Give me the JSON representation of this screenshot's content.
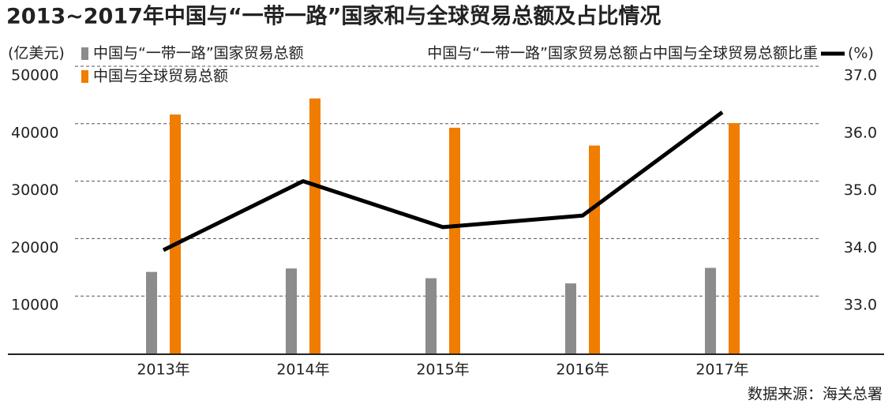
{
  "chart_data": {
    "type": "bar",
    "title": "2013~2017年中国与“一带一路”国家和与全球贸易总额及占比情况",
    "y_axis_label": "(亿美元)",
    "y2_axis_label": "(%)",
    "source": "数据来源：海关总署",
    "categories": [
      "2013年",
      "2014年",
      "2015年",
      "2016年",
      "2017年"
    ],
    "series": [
      {
        "name": "中国与“一带一路”国家贸易总额",
        "type": "bar",
        "color": "#8c8c8c",
        "values": [
          14200,
          14800,
          13100,
          12200,
          14900
        ]
      },
      {
        "name": "中国与全球贸易总额",
        "type": "bar",
        "color": "#f07c00",
        "values": [
          41600,
          44400,
          39300,
          36200,
          40100
        ]
      },
      {
        "name": "中国与“一带一路”国家贸易总额占中国与全球贸易总额比重",
        "type": "line",
        "axis": "y2",
        "color": "#000000",
        "values": [
          33.8,
          35.0,
          34.2,
          34.4,
          36.2
        ]
      }
    ],
    "ylim": [
      0,
      50000
    ],
    "yticks": [
      10000,
      20000,
      30000,
      40000,
      50000
    ],
    "y2lim": [
      32,
      37
    ],
    "y2ticks": [
      {
        "value": 33,
        "label": "33.0"
      },
      {
        "value": 34,
        "label": "34.0"
      },
      {
        "value": 35,
        "label": "35.0"
      },
      {
        "value": 36,
        "label": "36.0"
      },
      {
        "value": 37,
        "label": "37.0"
      }
    ],
    "grid": true
  }
}
